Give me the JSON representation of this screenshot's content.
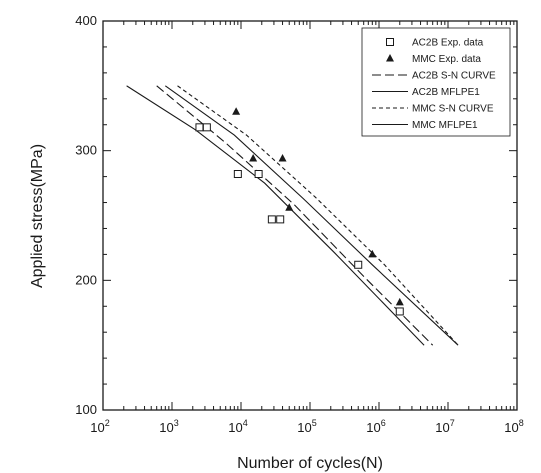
{
  "chart_data": {
    "type": "scatter",
    "title": "",
    "xlabel": "Number of cycles(N)",
    "ylabel": "Applied stress(MPa)",
    "xscale": "log",
    "xlim": [
      100,
      100000000
    ],
    "ylim": [
      100,
      400
    ],
    "x_ticks": [
      {
        "base": "10",
        "exp": "2",
        "value": 100
      },
      {
        "base": "10",
        "exp": "3",
        "value": 1000
      },
      {
        "base": "10",
        "exp": "4",
        "value": 10000
      },
      {
        "base": "10",
        "exp": "5",
        "value": 100000
      },
      {
        "base": "10",
        "exp": "6",
        "value": 1000000
      },
      {
        "base": "10",
        "exp": "7",
        "value": 10000000
      },
      {
        "base": "10",
        "exp": "8",
        "value": 100000000
      }
    ],
    "y_ticks": [
      "100",
      "200",
      "300",
      "400"
    ],
    "grid": false,
    "legend_position": "top-right",
    "series": [
      {
        "name": "AC2B Exp. data",
        "kind": "points",
        "marker": "open-square",
        "points": [
          [
            2500,
            318
          ],
          [
            3200,
            318
          ],
          [
            9000,
            282
          ],
          [
            18000,
            282
          ],
          [
            28000,
            247
          ],
          [
            37000,
            247
          ],
          [
            500000,
            212
          ],
          [
            2000000,
            176
          ]
        ]
      },
      {
        "name": "MMC Exp. data",
        "kind": "points",
        "marker": "filled-triangle",
        "points": [
          [
            8500,
            330
          ],
          [
            15000,
            294
          ],
          [
            40000,
            294
          ],
          [
            50000,
            256
          ],
          [
            800000,
            220
          ],
          [
            2000000,
            183
          ]
        ]
      },
      {
        "name": "AC2B S-N CURVE",
        "kind": "line",
        "dash": "long",
        "points": [
          [
            600,
            350
          ],
          [
            6000,
            306
          ],
          [
            60000,
            258
          ],
          [
            600000,
            203
          ],
          [
            6000000,
            150
          ]
        ]
      },
      {
        "name": "AC2B MFLPE1",
        "kind": "line",
        "dash": "solid",
        "points": [
          [
            800,
            350
          ],
          [
            8000,
            312
          ],
          [
            80000,
            263
          ],
          [
            800000,
            212
          ],
          [
            14000000,
            150
          ]
        ]
      },
      {
        "name": "MMC S-N CURVE",
        "kind": "line",
        "dash": "short",
        "points": [
          [
            1200,
            350
          ],
          [
            12000,
            312
          ],
          [
            120000,
            264
          ],
          [
            1200000,
            212
          ],
          [
            14000000,
            150
          ]
        ]
      },
      {
        "name": "MMC MFLPE1",
        "kind": "line",
        "dash": "solid",
        "points": [
          [
            220,
            350
          ],
          [
            2200,
            316
          ],
          [
            22000,
            275
          ],
          [
            220000,
            222
          ],
          [
            4500000,
            150
          ]
        ]
      }
    ]
  }
}
